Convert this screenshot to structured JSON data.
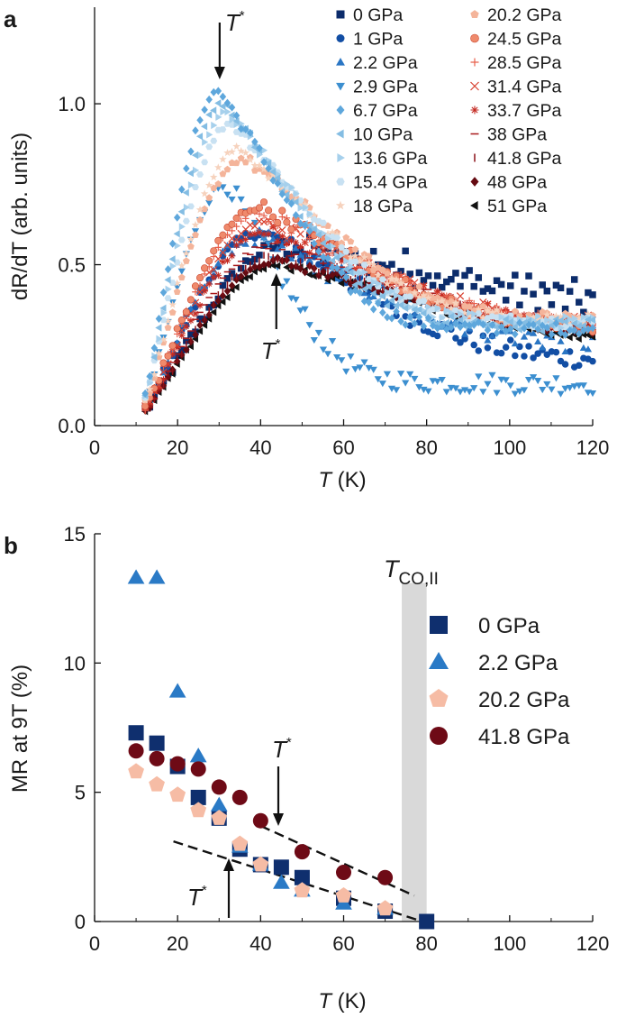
{
  "chart_data": [
    {
      "panel": "a",
      "type": "scatter",
      "xlabel_var": "T",
      "xlabel_unit": "(K)",
      "ylabel": "dR/dT (arb. units)",
      "xlim": [
        0,
        120
      ],
      "ylim": [
        0,
        1.3
      ],
      "xticks": [
        "0",
        "20",
        "40",
        "60",
        "80",
        "100",
        "120"
      ],
      "yticks": [
        {
          "v": 0.0,
          "t": "0.0"
        },
        {
          "v": 0.5,
          "t": "0.5"
        },
        {
          "v": 1.0,
          "t": "1.0"
        }
      ],
      "annotations": [
        {
          "label": "T",
          "sup": "*",
          "arrow": "down",
          "x": 31,
          "y": 1.04
        },
        {
          "label": "T",
          "sup": "*",
          "arrow": "up",
          "x": 44,
          "y": 0.45
        }
      ],
      "series": [
        {
          "name": "0 GPa",
          "color": "#0c2c6b",
          "marker": "square",
          "Tstar": 46,
          "peak": 0.56,
          "tail": 0.36,
          "wl": 34,
          "wr": 70,
          "noise": 0.025
        },
        {
          "name": "1 GPa",
          "color": "#124ea4",
          "marker": "circle",
          "Tstar": 40,
          "peak": 0.6,
          "tail": 0.2,
          "wl": 28,
          "wr": 50,
          "noise": 0.02
        },
        {
          "name": "2.2 GPa",
          "color": "#2a76c4",
          "marker": "triangle-up",
          "Tstar": 38,
          "peak": 0.58,
          "tail": 0.25,
          "wl": 26,
          "wr": 55,
          "noise": 0.025
        },
        {
          "name": "2.9 GPa",
          "color": "#3c8fd0",
          "marker": "triangle-down",
          "Tstar": 32,
          "peak": 0.75,
          "tail": 0.13,
          "wl": 20,
          "wr": 25,
          "noise": 0.02
        },
        {
          "name": "6.7 GPa",
          "color": "#5ea7dc",
          "marker": "diamond",
          "Tstar": 30,
          "peak": 1.04,
          "tail": 0.3,
          "wl": 18,
          "wr": 32,
          "noise": 0.012
        },
        {
          "name": "10 GPa",
          "color": "#84bde3",
          "marker": "triangle-left",
          "Tstar": 31,
          "peak": 1.0,
          "tail": 0.31,
          "wl": 19,
          "wr": 34,
          "noise": 0.012
        },
        {
          "name": "13.6 GPa",
          "color": "#a6d0ec",
          "marker": "triangle-right",
          "Tstar": 32,
          "peak": 0.97,
          "tail": 0.32,
          "wl": 20,
          "wr": 36,
          "noise": 0.012
        },
        {
          "name": "15.4 GPa",
          "color": "#c8e1f2",
          "marker": "hexagon",
          "Tstar": 33,
          "peak": 0.94,
          "tail": 0.32,
          "wl": 21,
          "wr": 38,
          "noise": 0.012
        },
        {
          "name": "18 GPa",
          "color": "#f6d2bd",
          "marker": "star",
          "Tstar": 35,
          "peak": 0.86,
          "tail": 0.33,
          "wl": 22,
          "wr": 40,
          "noise": 0.012
        },
        {
          "name": "20.2 GPa",
          "color": "#f4b49a",
          "marker": "pentagon",
          "Tstar": 36,
          "peak": 0.83,
          "tail": 0.33,
          "wl": 23,
          "wr": 42,
          "noise": 0.012
        },
        {
          "name": "24.5 GPa",
          "color": "#ef8a6c",
          "marker": "circle-half",
          "Tstar": 40,
          "peak": 0.68,
          "tail": 0.3,
          "wl": 26,
          "wr": 48,
          "noise": 0.015
        },
        {
          "name": "28.5 GPa",
          "color": "#e8604c",
          "marker": "plus",
          "Tstar": 40,
          "peak": 0.66,
          "tail": 0.31,
          "wl": 26,
          "wr": 50,
          "noise": 0.015
        },
        {
          "name": "31.4 GPa",
          "color": "#d8402f",
          "marker": "cross",
          "Tstar": 41,
          "peak": 0.63,
          "tail": 0.31,
          "wl": 27,
          "wr": 52,
          "noise": 0.015
        },
        {
          "name": "33.7 GPa",
          "color": "#c42a22",
          "marker": "asterisk",
          "Tstar": 42,
          "peak": 0.6,
          "tail": 0.3,
          "wl": 28,
          "wr": 54,
          "noise": 0.015
        },
        {
          "name": "38 GPa",
          "color": "#a8191b",
          "marker": "hline",
          "Tstar": 43,
          "peak": 0.56,
          "tail": 0.3,
          "wl": 29,
          "wr": 56,
          "noise": 0.012
        },
        {
          "name": "41.8 GPa",
          "color": "#8a1018",
          "marker": "vline",
          "Tstar": 44,
          "peak": 0.53,
          "tail": 0.29,
          "wl": 30,
          "wr": 58,
          "noise": 0.012
        },
        {
          "name": "48 GPa",
          "color": "#650b12",
          "marker": "diamond",
          "Tstar": 44,
          "peak": 0.51,
          "tail": 0.28,
          "wl": 30,
          "wr": 58,
          "noise": 0.008
        },
        {
          "name": "51 GPa",
          "color": "#111111",
          "marker": "triangle-left",
          "Tstar": 45,
          "peak": 0.5,
          "tail": 0.26,
          "wl": 31,
          "wr": 60,
          "noise": 0.008
        }
      ]
    },
    {
      "panel": "b",
      "type": "scatter",
      "xlabel_var": "T",
      "xlabel_unit": "(K)",
      "ylabel": "MR at 9T (%)",
      "xlim": [
        0,
        120
      ],
      "ylim": [
        0,
        15
      ],
      "xticks": [
        "0",
        "20",
        "40",
        "60",
        "80",
        "100",
        "120"
      ],
      "yticks": [
        {
          "v": 0,
          "t": "0"
        },
        {
          "v": 5,
          "t": "5"
        },
        {
          "v": 10,
          "t": "10"
        },
        {
          "v": 15,
          "t": "15"
        }
      ],
      "shaded_band": {
        "x0": 74,
        "x1": 80,
        "label": "T",
        "sub": "CO,II",
        "color": "#d9d9d9"
      },
      "annotations": [
        {
          "label": "T",
          "sup": "*",
          "arrow": "down",
          "x": 44,
          "y": 4.2
        },
        {
          "label": "T",
          "sup": "*",
          "arrow": "up",
          "x": 33,
          "y": 2.4
        }
      ],
      "dashed_lines": [
        {
          "x": [
            19,
            79
          ],
          "y": [
            3.1,
            0.0
          ]
        },
        {
          "x": [
            40,
            77
          ],
          "y": [
            3.7,
            1.0
          ]
        }
      ],
      "series": [
        {
          "name": "0 GPa",
          "color": "#0f2f6e",
          "marker": "square",
          "x": [
            10,
            15,
            20,
            25,
            30,
            35,
            40,
            45,
            50,
            60,
            70,
            80
          ],
          "y": [
            7.3,
            6.9,
            6.0,
            4.8,
            4.0,
            2.8,
            2.2,
            2.1,
            1.7,
            0.9,
            0.4,
            0.0
          ]
        },
        {
          "name": "2.2 GPa",
          "color": "#2a7ac6",
          "marker": "triangle-up",
          "x": [
            10,
            15,
            20,
            25,
            30,
            35,
            40,
            45,
            50,
            60,
            70
          ],
          "y": [
            13.3,
            13.3,
            8.9,
            6.4,
            4.5,
            2.9,
            2.2,
            1.5,
            1.2,
            0.7,
            0.5
          ]
        },
        {
          "name": "20.2 GPa",
          "color": "#f6bca5",
          "marker": "pentagon",
          "x": [
            10,
            15,
            20,
            25,
            30,
            35,
            40,
            50,
            60,
            70
          ],
          "y": [
            5.8,
            5.3,
            4.9,
            4.3,
            4.0,
            3.0,
            2.2,
            1.2,
            1.0,
            0.5
          ]
        },
        {
          "name": "41.8 GPa",
          "color": "#6e0a16",
          "marker": "circle",
          "x": [
            10,
            15,
            20,
            25,
            30,
            35,
            40,
            50,
            60,
            70
          ],
          "y": [
            6.6,
            6.3,
            6.1,
            5.9,
            5.2,
            4.8,
            3.9,
            2.7,
            1.9,
            1.7
          ]
        }
      ]
    }
  ],
  "panel_labels": {
    "a": "a",
    "b": "b"
  }
}
